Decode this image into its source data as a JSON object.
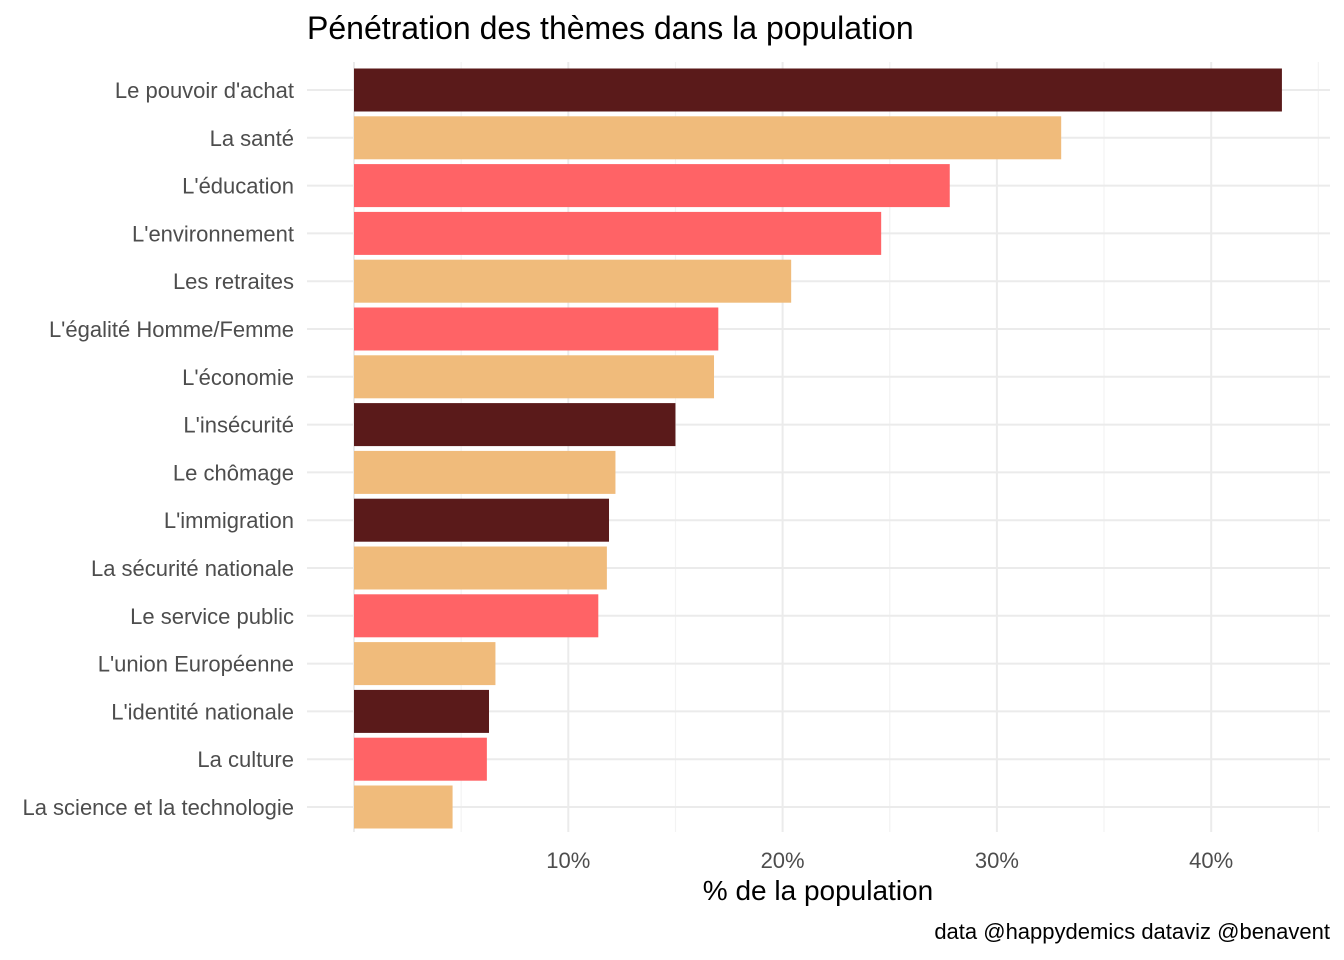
{
  "chart_data": {
    "type": "bar",
    "orientation": "horizontal",
    "title": "Pénétration des thèmes dans la population",
    "xlabel": "% de la population",
    "ylabel": "",
    "caption": "data @happydemics dataviz @benavent",
    "xlim": [
      0,
      45
    ],
    "xticks": [
      10,
      20,
      30,
      40
    ],
    "xtick_labels": [
      "10%",
      "20%",
      "30%",
      "40%"
    ],
    "grid": true,
    "legend": "none",
    "categories": [
      "Le pouvoir d'achat",
      "La santé",
      "L'éducation",
      "L'environnement",
      "Les retraites",
      "L'égalité Homme/Femme",
      "L'économie",
      "L'insécurité",
      "Le chômage",
      "L'immigration",
      "La sécurité nationale",
      "Le service public",
      "L'union Européenne",
      "L'identité nationale",
      "La culture",
      "La science et la technologie"
    ],
    "values": [
      43.3,
      33.0,
      27.8,
      24.6,
      20.4,
      17.0,
      16.8,
      15.0,
      12.2,
      11.9,
      11.8,
      11.4,
      6.6,
      6.3,
      6.2,
      4.6
    ],
    "bar_colors": [
      "#5a1a1a",
      "#f0bb7b",
      "#ff6366",
      "#ff6366",
      "#f0bb7b",
      "#ff6366",
      "#f0bb7b",
      "#5a1a1a",
      "#f0bb7b",
      "#5a1a1a",
      "#f0bb7b",
      "#ff6366",
      "#f0bb7b",
      "#5a1a1a",
      "#ff6366",
      "#f0bb7b"
    ]
  },
  "colors": {
    "grid_major": "#ebebeb",
    "grid_minor": "#f3f3f3",
    "tick_label": "#4d4d4d"
  }
}
